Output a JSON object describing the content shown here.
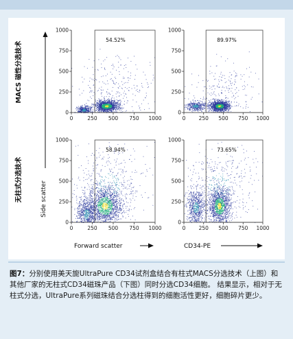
{
  "figure": {
    "row_labels": [
      "MACS 磁性分选技术",
      "无柱式分选技术"
    ],
    "y_axis_label": "Side scatter",
    "x_axis_labels": [
      "Forward scatter",
      "CD34-PE"
    ]
  },
  "caption": {
    "label": "图7：",
    "text": "分别使用美天旎UltraPure CD34试剂盒结合有柱式MACS分选技术（上图）和其他厂家的无柱式CD34磁珠产品（下图）同时分选CD34细胞。 结果显示，相对于无柱式分选，UltraPure系列磁珠结合分选柱得到的细胞活性更好，细胞碎片更少。"
  },
  "colors": {
    "background": "#e4eef6",
    "band": "#c3d7e9",
    "dots_sparse": "#2b3a9c",
    "dots_dense": "#21b27a",
    "dots_core": "#f2e63a"
  },
  "chart_data": [
    {
      "type": "scatter",
      "name": "MACS row - Forward scatter vs Side scatter",
      "xlim": [
        0,
        1000
      ],
      "ylim": [
        0,
        1000
      ],
      "xticks": [
        0,
        250,
        500,
        750,
        1000
      ],
      "yticks": [
        0,
        250,
        500,
        750,
        1000
      ],
      "gate": {
        "x": 280,
        "y": 1000
      },
      "gate_percent": "54.52%",
      "populations": [
        {
          "cx": 420,
          "cy": 80,
          "sx": 70,
          "sy": 35,
          "n": 1400
        },
        {
          "cx": 150,
          "cy": 30,
          "sx": 40,
          "sy": 25,
          "n": 400
        },
        {
          "cx": 550,
          "cy": 300,
          "sx": 250,
          "sy": 200,
          "n": 300
        }
      ]
    },
    {
      "type": "scatter",
      "name": "MACS row - CD34-PE vs Side scatter",
      "xlim": [
        0,
        1000
      ],
      "ylim": [
        0,
        1000
      ],
      "xticks": [
        0,
        250,
        500,
        750,
        1000
      ],
      "yticks": [
        0,
        250,
        500,
        750,
        1000
      ],
      "gate": {
        "x": 280,
        "y": 1000
      },
      "gate_percent": "89.97%",
      "populations": [
        {
          "cx": 450,
          "cy": 80,
          "sx": 60,
          "sy": 30,
          "n": 1400
        },
        {
          "cx": 150,
          "cy": 80,
          "sx": 60,
          "sy": 30,
          "n": 400
        },
        {
          "cx": 500,
          "cy": 250,
          "sx": 220,
          "sy": 180,
          "n": 250
        }
      ]
    },
    {
      "type": "scatter",
      "name": "Column-free row - Forward scatter vs Side scatter",
      "xlim": [
        0,
        1000
      ],
      "ylim": [
        0,
        1000
      ],
      "xticks": [
        0,
        250,
        500,
        750,
        1000
      ],
      "yticks": [
        0,
        250,
        500,
        750,
        1000
      ],
      "gate": {
        "x": 280,
        "y": 1000
      },
      "gate_percent": "58.94%",
      "populations": [
        {
          "cx": 400,
          "cy": 200,
          "sx": 100,
          "sy": 120,
          "n": 1500
        },
        {
          "cx": 180,
          "cy": 100,
          "sx": 60,
          "sy": 100,
          "n": 700
        },
        {
          "cx": 450,
          "cy": 450,
          "sx": 230,
          "sy": 250,
          "n": 500
        }
      ]
    },
    {
      "type": "scatter",
      "name": "Column-free row - CD34-PE vs Side scatter",
      "xlim": [
        0,
        1000
      ],
      "ylim": [
        0,
        1000
      ],
      "xticks": [
        0,
        250,
        500,
        750,
        1000
      ],
      "yticks": [
        0,
        250,
        500,
        750,
        1000
      ],
      "gate": {
        "x": 280,
        "y": 1000
      },
      "gate_percent": "73.65%",
      "populations": [
        {
          "cx": 450,
          "cy": 200,
          "sx": 70,
          "sy": 110,
          "n": 1300
        },
        {
          "cx": 150,
          "cy": 180,
          "sx": 60,
          "sy": 110,
          "n": 700
        },
        {
          "cx": 450,
          "cy": 450,
          "sx": 230,
          "sy": 250,
          "n": 450
        }
      ]
    }
  ]
}
